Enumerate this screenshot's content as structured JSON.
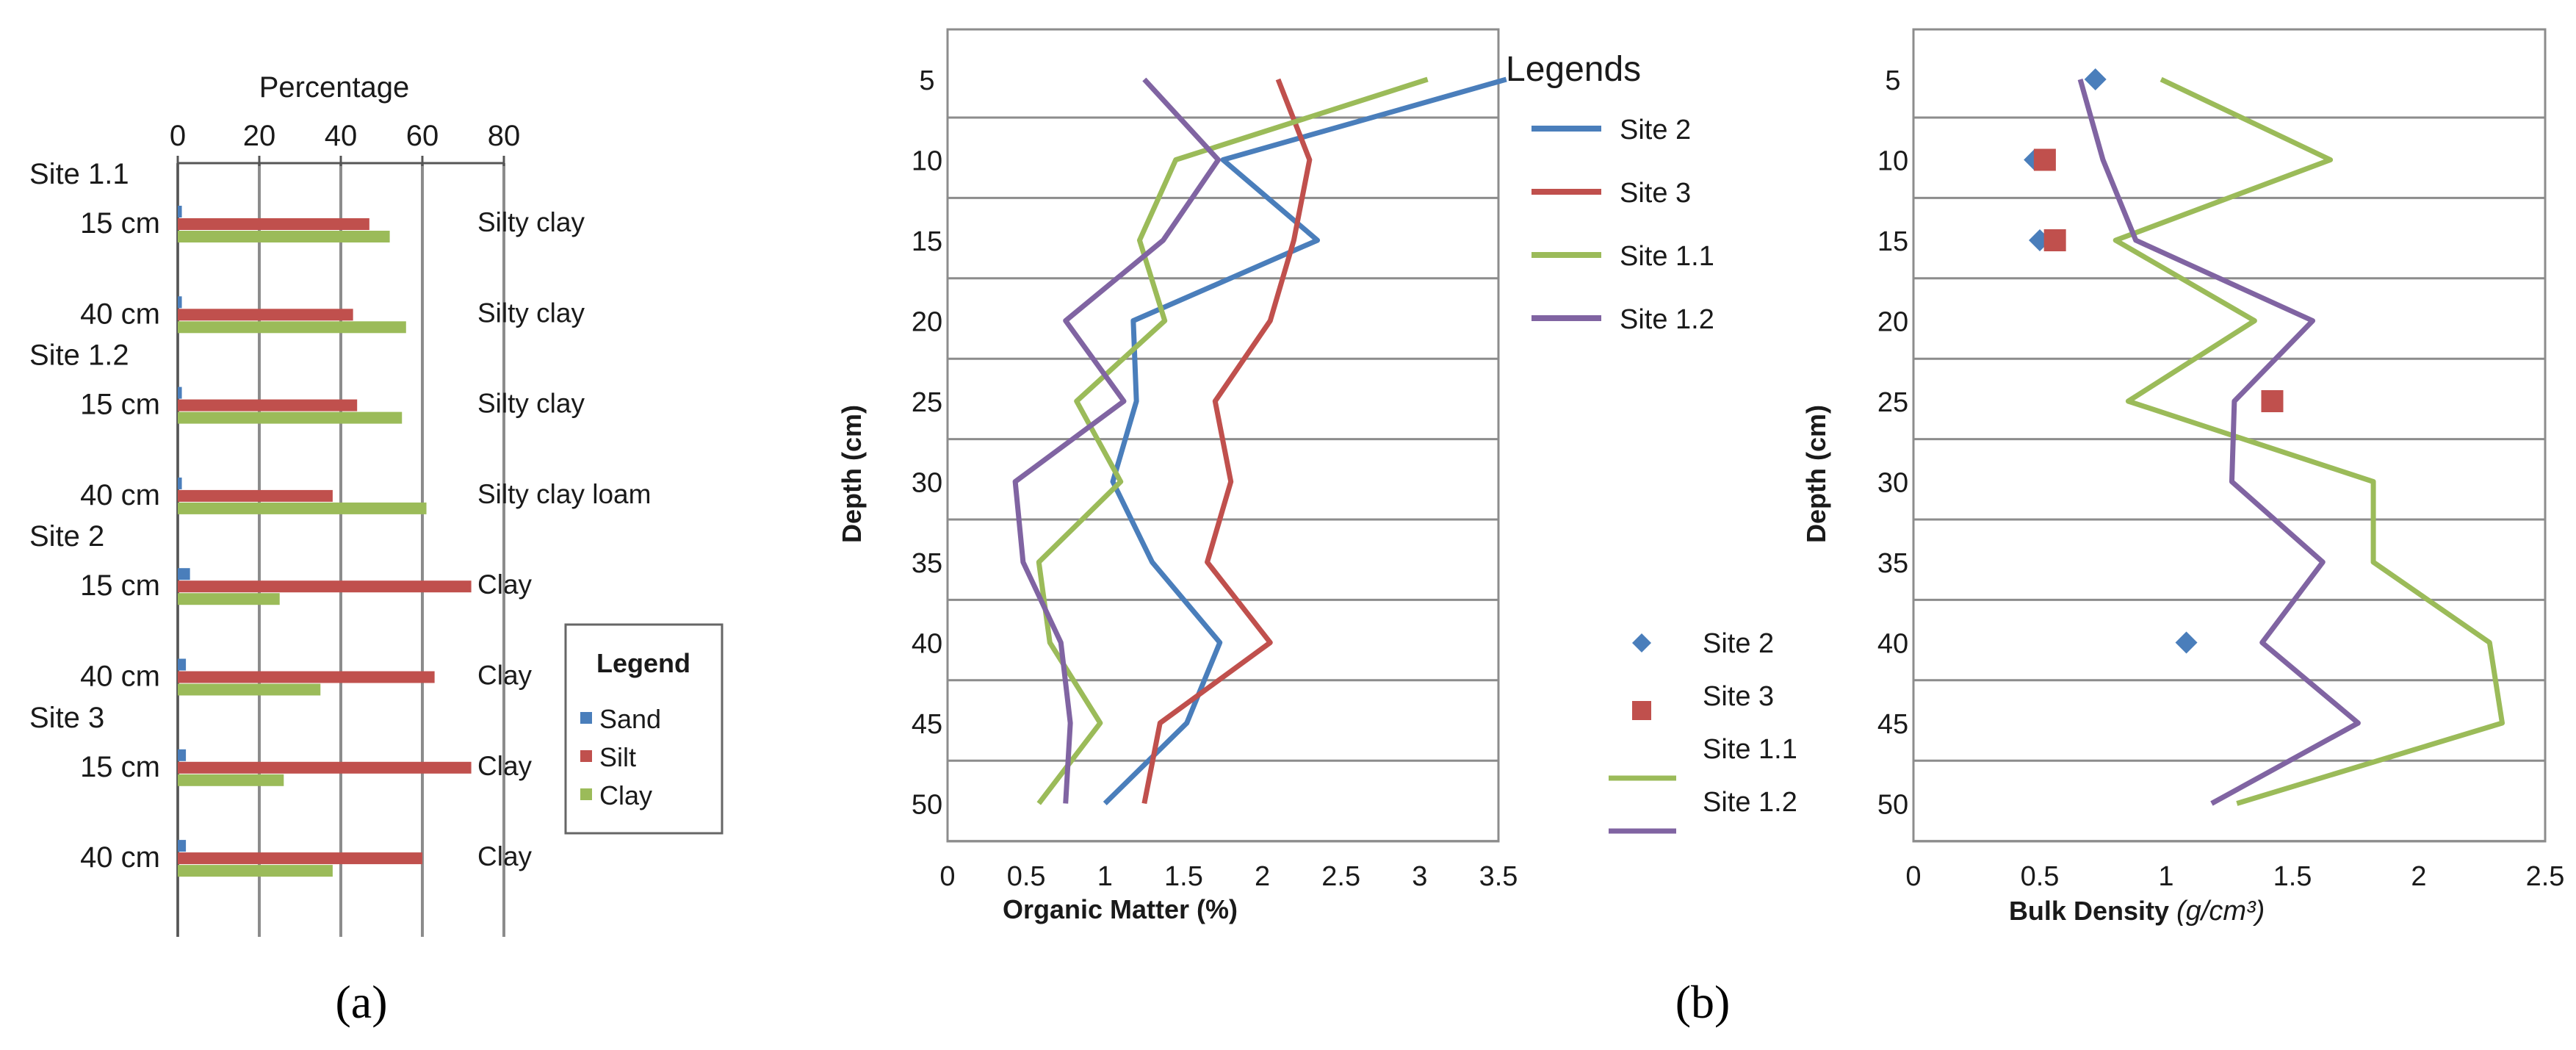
{
  "panels": {
    "a": "(a)",
    "b": "(b)"
  },
  "colors": {
    "sand": "#4a7ebb",
    "silt": "#c0504d",
    "clay": "#9bbb59",
    "purple": "#8064a2",
    "grid": "#8c8c8c"
  },
  "chart_data": [
    {
      "id": "texture",
      "type": "bar",
      "orientation": "horizontal",
      "title": "Percentage",
      "xlim": [
        0,
        80
      ],
      "xticks": [
        "0",
        "20",
        "40",
        "60",
        "80"
      ],
      "group_labels": [
        "Site 1.1",
        "Site 1.2",
        "Site 2",
        "Site 3"
      ],
      "rows": [
        {
          "group": 0,
          "depth": "15 cm",
          "texture": "Silty clay"
        },
        {
          "group": -1,
          "depth": "40 cm",
          "texture": "Silty clay"
        },
        {
          "group": 1,
          "depth": "15 cm",
          "texture": "Silty clay"
        },
        {
          "group": -1,
          "depth": "40 cm",
          "texture": "Silty clay loam"
        },
        {
          "group": 2,
          "depth": "15 cm",
          "texture": "Clay"
        },
        {
          "group": -1,
          "depth": "40 cm",
          "texture": "Clay"
        },
        {
          "group": 3,
          "depth": "15 cm",
          "texture": "Clay"
        },
        {
          "group": -1,
          "depth": "40 cm",
          "texture": "Clay"
        }
      ],
      "series": [
        {
          "name": "Sand",
          "color": "#4a7ebb",
          "values": [
            1,
            1,
            1,
            1,
            3,
            2,
            2,
            2
          ]
        },
        {
          "name": "Silt",
          "color": "#c0504d",
          "values": [
            47,
            43,
            44,
            38,
            72,
            63,
            72,
            60
          ]
        },
        {
          "name": "Clay",
          "color": "#9bbb59",
          "values": [
            52,
            56,
            55,
            61,
            25,
            35,
            26,
            38
          ]
        }
      ],
      "legend_title": "Legend"
    },
    {
      "id": "organic",
      "type": "line",
      "xlabel": "Organic Matter (%)",
      "ylabel": "Depth (cm)",
      "xlim": [
        0,
        3.5
      ],
      "ylim": [
        50,
        5
      ],
      "xticks": [
        "0",
        "0.5",
        "1",
        "1.5",
        "2",
        "2.5",
        "3",
        "3.5"
      ],
      "yticks": [
        "5",
        "10",
        "15",
        "20",
        "25",
        "30",
        "35",
        "40",
        "45",
        "50"
      ],
      "legend_title": "Legends",
      "series": [
        {
          "name": "Site 2",
          "color": "#4a7ebb",
          "depth": [
            5,
            10,
            15,
            20,
            25,
            30,
            35,
            40,
            45,
            50
          ],
          "values": [
            3.55,
            1.75,
            2.35,
            1.18,
            1.2,
            1.05,
            1.3,
            1.73,
            1.52,
            1.0
          ]
        },
        {
          "name": "Site 3",
          "color": "#c0504d",
          "depth": [
            5,
            10,
            15,
            20,
            25,
            30,
            35,
            40,
            45,
            50
          ],
          "values": [
            2.1,
            2.3,
            2.2,
            2.05,
            1.7,
            1.8,
            1.65,
            2.05,
            1.35,
            1.25
          ]
        },
        {
          "name": "Site 1.1",
          "color": "#9bbb59",
          "depth": [
            5,
            10,
            15,
            20,
            25,
            30,
            35,
            40,
            45,
            50
          ],
          "values": [
            3.05,
            1.45,
            1.22,
            1.38,
            0.82,
            1.1,
            0.58,
            0.65,
            0.97,
            0.58
          ]
        },
        {
          "name": "Site 1.2",
          "color": "#8064a2",
          "depth": [
            5,
            10,
            15,
            20,
            25,
            30,
            35,
            40,
            45,
            50
          ],
          "values": [
            1.25,
            1.72,
            1.37,
            0.75,
            1.12,
            0.43,
            0.48,
            0.72,
            0.78,
            0.75
          ]
        }
      ]
    },
    {
      "id": "bulk",
      "type": "line",
      "xlabel": "Bulk Density",
      "xlabel_unit": "(g/cm³)",
      "ylabel": "Depth (cm)",
      "xlim": [
        0,
        2.5
      ],
      "ylim": [
        50,
        5
      ],
      "xticks": [
        "0",
        "0.5",
        "1",
        "1.5",
        "2",
        "2.5"
      ],
      "yticks": [
        "5",
        "10",
        "15",
        "20",
        "25",
        "30",
        "35",
        "40",
        "45",
        "50"
      ],
      "series": [
        {
          "name": "Site 2",
          "color": "#4a7ebb",
          "marker": "diamond",
          "depth": [
            5,
            10,
            15,
            40
          ],
          "values": [
            0.72,
            0.48,
            0.5,
            1.08
          ]
        },
        {
          "name": "Site 3",
          "color": "#c0504d",
          "marker": "square",
          "depth": [
            10,
            15,
            25
          ],
          "values": [
            0.52,
            0.56,
            1.42
          ]
        },
        {
          "name": "Site 1.1",
          "color": "#9bbb59",
          "marker": "line",
          "depth": [
            5,
            10,
            15,
            20,
            25,
            30,
            35,
            40,
            45,
            50
          ],
          "values": [
            0.98,
            1.65,
            0.8,
            1.35,
            0.85,
            1.82,
            1.82,
            2.28,
            2.33,
            1.28
          ]
        },
        {
          "name": "Site 1.2",
          "color": "#8064a2",
          "marker": "line",
          "depth": [
            5,
            10,
            15,
            20,
            25,
            30,
            35,
            40,
            45,
            50
          ],
          "values": [
            0.66,
            0.75,
            0.88,
            1.58,
            1.27,
            1.26,
            1.62,
            1.38,
            1.76,
            1.18
          ]
        }
      ]
    }
  ]
}
